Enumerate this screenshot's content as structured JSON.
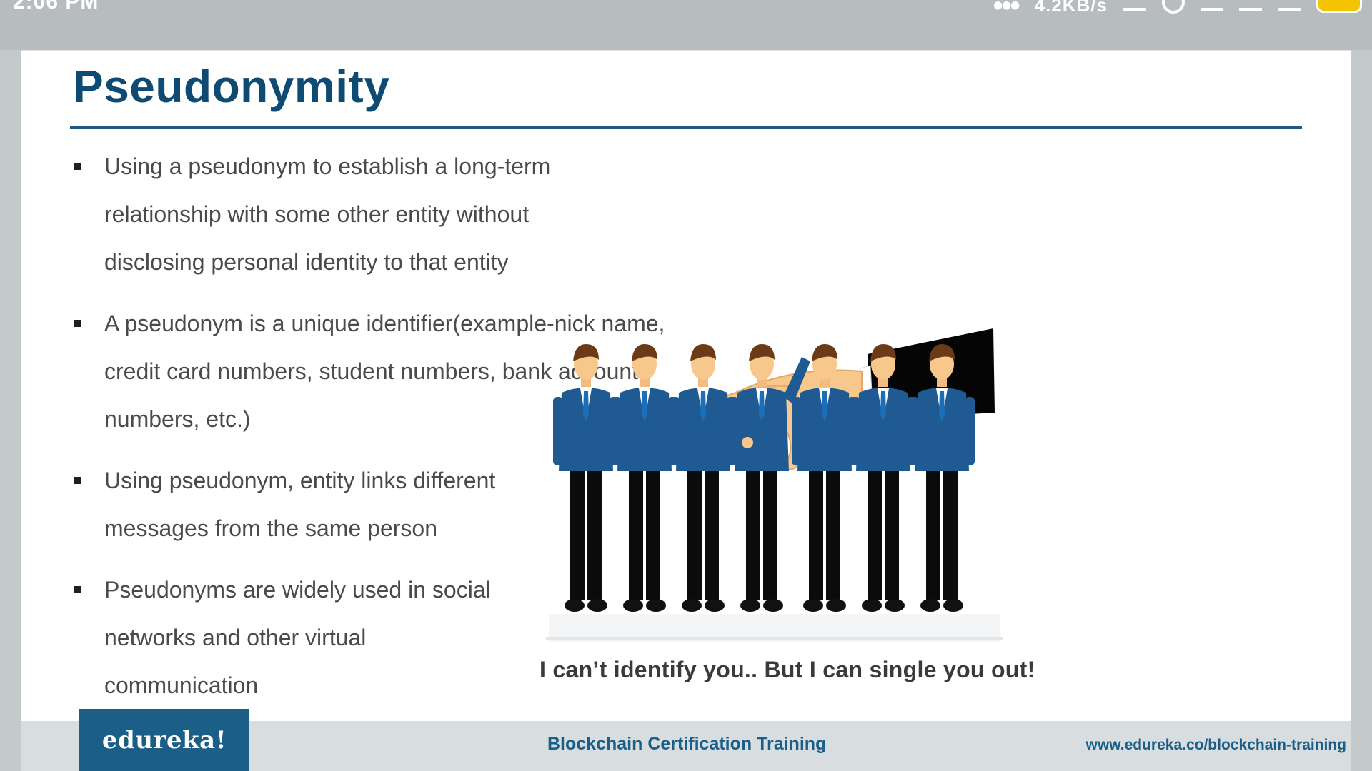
{
  "status_bar": {
    "time": "2:06 PM",
    "net_speed": "4.2KB/s"
  },
  "slide": {
    "title": "Pseudonymity",
    "bullets": [
      "Using a pseudonym to establish a long-term relationship with some other entity without disclosing personal identity to that entity",
      "A pseudonym is a unique identifier(example-nick name, credit card numbers, student numbers, bank account numbers, etc.)",
      "Using pseudonym, entity links different messages from the same person",
      "Pseudonyms are widely used in social networks and other virtual communication"
    ],
    "image_caption": "I can’t identify you.. But I can single you out!"
  },
  "footer": {
    "logo": "edureka!",
    "course": "Blockchain Certification Training",
    "url": "www.edureka.co/blockchain-training"
  },
  "colors": {
    "title": "#0e4a72",
    "accent": "#1b5e88",
    "suit": "#1f5a92"
  },
  "icons": {
    "hand": "hand-pointing-icon",
    "person": "business-person-icon"
  }
}
